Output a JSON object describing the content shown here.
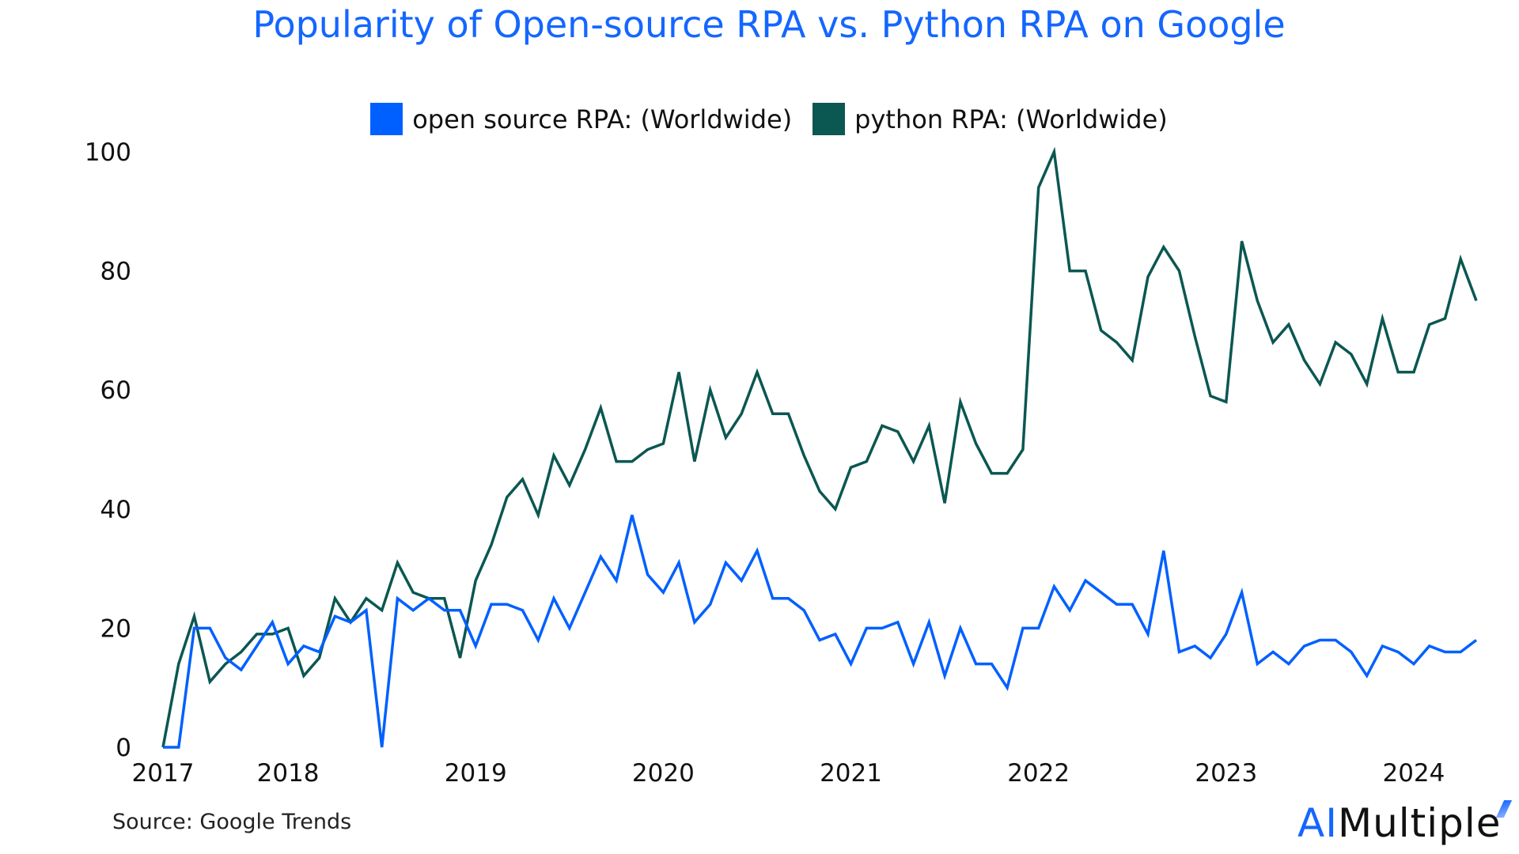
{
  "chart_data": {
    "type": "line",
    "title": "Popularity of Open-source RPA vs. Python RPA on Google",
    "xlabel": "",
    "ylabel": "",
    "ylim": [
      0,
      100
    ],
    "yticks": [
      0,
      20,
      40,
      60,
      80,
      100
    ],
    "xticks": [
      {
        "label": "2017",
        "x": "2017-05"
      },
      {
        "label": "2018",
        "x": "2018-01"
      },
      {
        "label": "2019",
        "x": "2019-01"
      },
      {
        "label": "2020",
        "x": "2020-01"
      },
      {
        "label": "2021",
        "x": "2021-01"
      },
      {
        "label": "2022",
        "x": "2022-01"
      },
      {
        "label": "2023",
        "x": "2023-01"
      },
      {
        "label": "2024",
        "x": "2024-01"
      }
    ],
    "grid": false,
    "legend_position": "top",
    "x": [
      "2017-05",
      "2017-06",
      "2017-07",
      "2017-08",
      "2017-09",
      "2017-10",
      "2017-11",
      "2017-12",
      "2018-01",
      "2018-02",
      "2018-03",
      "2018-04",
      "2018-05",
      "2018-06",
      "2018-07",
      "2018-08",
      "2018-09",
      "2018-10",
      "2018-11",
      "2018-12",
      "2019-01",
      "2019-02",
      "2019-03",
      "2019-04",
      "2019-05",
      "2019-06",
      "2019-07",
      "2019-08",
      "2019-09",
      "2019-10",
      "2019-11",
      "2019-12",
      "2020-01",
      "2020-02",
      "2020-03",
      "2020-04",
      "2020-05",
      "2020-06",
      "2020-07",
      "2020-08",
      "2020-09",
      "2020-10",
      "2020-11",
      "2020-12",
      "2021-01",
      "2021-02",
      "2021-03",
      "2021-04",
      "2021-05",
      "2021-06",
      "2021-07",
      "2021-08",
      "2021-09",
      "2021-10",
      "2021-11",
      "2021-12",
      "2022-01",
      "2022-02",
      "2022-03",
      "2022-04",
      "2022-05",
      "2022-06",
      "2022-07",
      "2022-08",
      "2022-09",
      "2022-10",
      "2022-11",
      "2022-12",
      "2023-01",
      "2023-02",
      "2023-03",
      "2023-04",
      "2023-05",
      "2023-06",
      "2023-07",
      "2023-08",
      "2023-09",
      "2023-10",
      "2023-11",
      "2023-12",
      "2024-01",
      "2024-02",
      "2024-03",
      "2024-04",
      "2024-05"
    ],
    "series": [
      {
        "name": "open source RPA: (Worldwide)",
        "color": "#0060ff",
        "values": [
          0,
          0,
          20,
          20,
          15,
          13,
          17,
          21,
          14,
          17,
          16,
          22,
          21,
          23,
          0,
          25,
          23,
          25,
          23,
          23,
          17,
          24,
          24,
          23,
          18,
          25,
          20,
          26,
          32,
          28,
          39,
          29,
          26,
          31,
          21,
          24,
          31,
          28,
          33,
          25,
          25,
          23,
          18,
          19,
          14,
          20,
          20,
          21,
          14,
          21,
          12,
          20,
          14,
          14,
          10,
          20,
          20,
          27,
          23,
          28,
          26,
          24,
          24,
          19,
          33,
          16,
          17,
          15,
          19,
          26,
          14,
          16,
          14,
          17,
          18,
          18,
          16,
          12,
          17,
          16,
          14,
          17,
          16,
          16,
          18
        ]
      },
      {
        "name": "python RPA: (Worldwide)",
        "color": "#0b5752",
        "values": [
          0,
          14,
          22,
          11,
          14,
          16,
          19,
          19,
          20,
          12,
          15,
          25,
          21,
          25,
          23,
          31,
          26,
          25,
          25,
          15,
          28,
          34,
          42,
          45,
          39,
          49,
          44,
          50,
          57,
          48,
          48,
          50,
          51,
          63,
          48,
          60,
          52,
          56,
          63,
          56,
          56,
          49,
          43,
          40,
          47,
          48,
          54,
          53,
          48,
          54,
          41,
          58,
          51,
          46,
          46,
          50,
          94,
          100,
          80,
          80,
          70,
          68,
          65,
          79,
          84,
          80,
          69,
          59,
          58,
          85,
          75,
          68,
          71,
          65,
          61,
          68,
          66,
          61,
          72,
          63,
          63,
          71,
          72,
          82,
          75
        ]
      }
    ],
    "source": "Source: Google Trends"
  },
  "logo": {
    "text_ai": "AI",
    "text_rest": "Multiple"
  }
}
